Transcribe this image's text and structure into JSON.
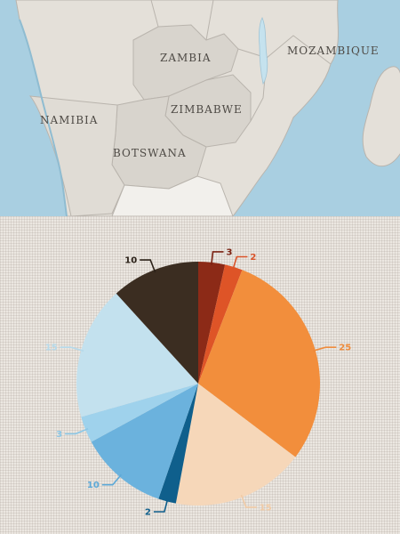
{
  "map": {
    "labels": {
      "zambia": "ZAMBIA",
      "mozambique": "MOZAMBIQUE",
      "namibia": "NAMIBIA",
      "zimbabwe": "ZIMBABWE",
      "botswana": "BOTSWANA"
    },
    "colors": {
      "ocean": "#a9cfe1",
      "land": "#e4e0d9",
      "land_highlight": "#d8d4cd",
      "border": "#b9b4ad",
      "lake": "#c5e2ee"
    }
  },
  "chart_data": {
    "type": "pie",
    "start": "12 o'clock, clockwise",
    "slices": [
      {
        "label": "3",
        "value": 3,
        "color": "#8c2a17",
        "label_color": "#7b2212"
      },
      {
        "label": "2",
        "value": 2,
        "color": "#de5427",
        "label_color": "#d9532a"
      },
      {
        "label": "25",
        "value": 25,
        "color": "#f28e3c",
        "label_color": "#ee8b3c"
      },
      {
        "label": "15",
        "value": 15,
        "color": "#f6d7b9",
        "label_color": "#f1cba6"
      },
      {
        "label": "2",
        "value": 2,
        "color": "#0f5f8c",
        "label_color": "#0f5f8c"
      },
      {
        "label": "10",
        "value": 10,
        "color": "#6bb2dd",
        "label_color": "#5da9d8"
      },
      {
        "label": "3",
        "value": 3,
        "color": "#9fd2ec",
        "label_color": "#8cc7e6"
      },
      {
        "label": "15",
        "value": 15,
        "color": "#c3e1ee",
        "label_color": "#b5d9ea"
      },
      {
        "label": "10",
        "value": 10,
        "color": "#3b2d21",
        "label_color": "#2c2219"
      }
    ]
  }
}
